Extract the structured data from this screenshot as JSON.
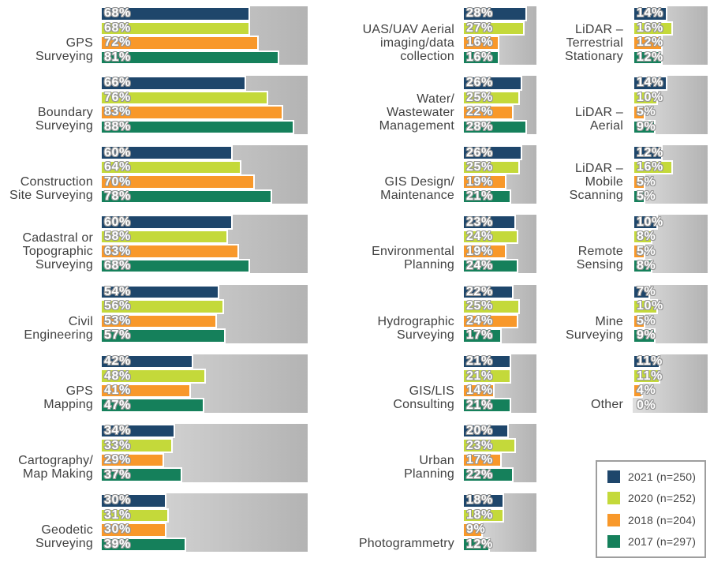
{
  "chart_data": {
    "type": "bar",
    "orientation": "horizontal",
    "value_suffix": "%",
    "grid": false,
    "legend_position": "bottom-right",
    "series": [
      {
        "year": "2021",
        "label": "2021 (n=250)",
        "color": "#1e466b"
      },
      {
        "year": "2020",
        "label": "2020 (n=252)",
        "color": "#c4d93a"
      },
      {
        "year": "2018",
        "label": "2018 (n=204)",
        "color": "#f8982a"
      },
      {
        "year": "2017",
        "label": "2017 (n=297)",
        "color": "#15805b"
      }
    ],
    "columns": [
      {
        "axis_max": 94,
        "groups": [
          {
            "label": "GPS\nSurveying",
            "values": [
              68,
              68,
              72,
              81
            ]
          },
          {
            "label": "Boundary\nSurveying",
            "values": [
              66,
              76,
              83,
              88
            ]
          },
          {
            "label": "Construction\nSite Surveying",
            "values": [
              60,
              64,
              70,
              78
            ]
          },
          {
            "label": "Cadastral or\nTopographic\nSurveying",
            "values": [
              60,
              58,
              63,
              68
            ]
          },
          {
            "label": "Civil\nEngineering",
            "values": [
              54,
              56,
              53,
              57
            ]
          },
          {
            "label": "GPS\nMapping",
            "values": [
              42,
              48,
              41,
              47
            ]
          },
          {
            "label": "Cartography/\nMap Making",
            "values": [
              34,
              33,
              29,
              37
            ]
          },
          {
            "label": "Geodetic\nSurveying",
            "values": [
              30,
              31,
              30,
              39
            ]
          }
        ]
      },
      {
        "axis_max": 32,
        "groups": [
          {
            "label": "UAS/UAV Aerial\nimaging/data\ncollection",
            "values": [
              28,
              27,
              16,
              16
            ]
          },
          {
            "label": "Water/\nWastewater\nManagement",
            "values": [
              26,
              25,
              22,
              28
            ]
          },
          {
            "label": "GIS Design/\nMaintenance",
            "values": [
              26,
              25,
              19,
              21
            ]
          },
          {
            "label": "Environmental\nPlanning",
            "values": [
              23,
              24,
              19,
              24
            ]
          },
          {
            "label": "Hydrographic\nSurveying",
            "values": [
              22,
              25,
              24,
              17
            ]
          },
          {
            "label": "GIS/LIS\nConsulting",
            "values": [
              21,
              21,
              14,
              21
            ]
          },
          {
            "label": "Urban\nPlanning",
            "values": [
              20,
              23,
              17,
              22
            ]
          },
          {
            "label": "Photogrammetry",
            "values": [
              18,
              18,
              9,
              12
            ]
          }
        ]
      },
      {
        "axis_max": 30,
        "groups": [
          {
            "label": "LiDAR –\nTerrestrial\nStationary",
            "values": [
              14,
              16,
              12,
              12
            ]
          },
          {
            "label": "LiDAR –\nAerial",
            "values": [
              14,
              10,
              5,
              9
            ]
          },
          {
            "label": "LiDAR –\nMobile\nScanning",
            "values": [
              12,
              16,
              5,
              5
            ]
          },
          {
            "label": "Remote\nSensing",
            "values": [
              10,
              8,
              5,
              8
            ]
          },
          {
            "label": "Mine\nSurveying",
            "values": [
              7,
              10,
              5,
              9
            ]
          },
          {
            "label": "Other",
            "values": [
              11,
              11,
              4,
              0
            ]
          }
        ]
      }
    ],
    "track_gradient": [
      "#dfdfdf",
      "#b3b3b3"
    ],
    "value_label_color": "#ffffff",
    "group_label_color": "#414141"
  },
  "legend": {
    "items": [
      {
        "label": "2021 (n=250)",
        "color": "#1e466b"
      },
      {
        "label": "2020 (n=252)",
        "color": "#c4d93a"
      },
      {
        "label": "2018 (n=204)",
        "color": "#f8982a"
      },
      {
        "label": "2017 (n=297)",
        "color": "#15805b"
      }
    ]
  }
}
